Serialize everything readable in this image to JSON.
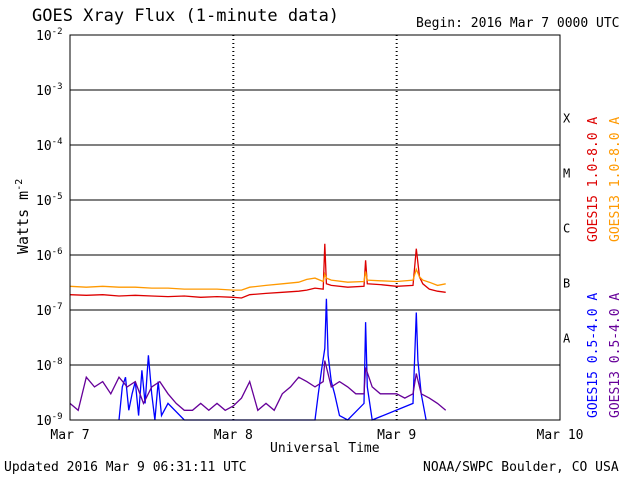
{
  "header": {
    "title": "GOES Xray Flux (1-minute data)",
    "begin": "Begin:  2016 Mar 7 0000 UTC"
  },
  "footer": {
    "updated": "Updated 2016 Mar  9 06:31:11 UTC",
    "credit": "NOAA/SWPC Boulder, CO USA"
  },
  "chart_data": {
    "type": "line",
    "xlabel": "Universal Time",
    "ylabel": "Watts m",
    "ylabel_exponent": "-2",
    "x_ticks": [
      "Mar 7",
      "Mar 8",
      "Mar 9",
      "Mar 10"
    ],
    "xlim_days": [
      0,
      3
    ],
    "y_scale": "log",
    "ylim": [
      1e-09,
      0.01
    ],
    "y_ticks": [
      {
        "base": "10",
        "exp": "-9"
      },
      {
        "base": "10",
        "exp": "-8"
      },
      {
        "base": "10",
        "exp": "-7"
      },
      {
        "base": "10",
        "exp": "-6"
      },
      {
        "base": "10",
        "exp": "-5"
      },
      {
        "base": "10",
        "exp": "-4"
      },
      {
        "base": "10",
        "exp": "-3"
      },
      {
        "base": "10",
        "exp": "-2"
      }
    ],
    "flare_classes": [
      "A",
      "B",
      "C",
      "M",
      "X"
    ],
    "series": [
      {
        "name": "GOES15 1.0-8.0 A",
        "color": "#dd0000",
        "x": [
          0,
          0.1,
          0.2,
          0.3,
          0.4,
          0.5,
          0.6,
          0.7,
          0.8,
          0.9,
          1.0,
          1.05,
          1.1,
          1.2,
          1.3,
          1.4,
          1.45,
          1.5,
          1.55,
          1.56,
          1.57,
          1.6,
          1.7,
          1.8,
          1.81,
          1.82,
          1.9,
          2.0,
          2.1,
          2.12,
          2.14,
          2.16,
          2.2,
          2.25,
          2.3
        ],
        "values": [
          1.9e-07,
          1.85e-07,
          1.9e-07,
          1.8e-07,
          1.85e-07,
          1.8e-07,
          1.75e-07,
          1.8e-07,
          1.7e-07,
          1.75e-07,
          1.7e-07,
          1.65e-07,
          1.9e-07,
          2e-07,
          2.1e-07,
          2.2e-07,
          2.3e-07,
          2.5e-07,
          2.4e-07,
          1.6e-06,
          3e-07,
          2.8e-07,
          2.6e-07,
          2.7e-07,
          8e-07,
          3e-07,
          2.9e-07,
          2.7e-07,
          2.8e-07,
          1.3e-06,
          4e-07,
          3e-07,
          2.4e-07,
          2.2e-07,
          2.1e-07
        ]
      },
      {
        "name": "GOES13 1.0-8.0 A",
        "color": "#ff9900",
        "x": [
          0,
          0.1,
          0.2,
          0.3,
          0.4,
          0.5,
          0.6,
          0.7,
          0.8,
          0.9,
          1.0,
          1.05,
          1.1,
          1.2,
          1.3,
          1.4,
          1.45,
          1.5,
          1.55,
          1.56,
          1.57,
          1.6,
          1.7,
          1.8,
          1.81,
          1.82,
          1.9,
          2.0,
          2.1,
          2.12,
          2.14,
          2.16,
          2.2,
          2.25,
          2.3
        ],
        "values": [
          2.7e-07,
          2.6e-07,
          2.7e-07,
          2.6e-07,
          2.6e-07,
          2.5e-07,
          2.5e-07,
          2.4e-07,
          2.4e-07,
          2.4e-07,
          2.3e-07,
          2.3e-07,
          2.6e-07,
          2.8e-07,
          3e-07,
          3.2e-07,
          3.6e-07,
          3.8e-07,
          3.3e-07,
          4.5e-07,
          3.8e-07,
          3.5e-07,
          3.2e-07,
          3.3e-07,
          5e-07,
          3.5e-07,
          3.4e-07,
          3.3e-07,
          3.5e-07,
          5.5e-07,
          4e-07,
          3.5e-07,
          3.2e-07,
          2.8e-07,
          3e-07
        ]
      },
      {
        "name": "GOES15 0.5-4.0 A",
        "color": "#0000ff",
        "x": [
          0.3,
          0.32,
          0.34,
          0.36,
          0.38,
          0.4,
          0.42,
          0.44,
          0.46,
          0.48,
          0.5,
          0.52,
          0.54,
          0.56,
          0.6,
          0.7,
          1.5,
          1.52,
          1.54,
          1.56,
          1.57,
          1.58,
          1.6,
          1.62,
          1.65,
          1.7,
          1.8,
          1.81,
          1.82,
          1.85,
          2.1,
          2.12,
          2.13,
          2.15,
          2.18
        ],
        "values": [
          1e-09,
          4e-09,
          6e-09,
          1.5e-09,
          3e-09,
          5e-09,
          1.2e-09,
          8e-09,
          2e-09,
          1.5e-08,
          3e-09,
          1e-09,
          5e-09,
          1.2e-09,
          2e-09,
          1e-09,
          1e-09,
          3e-09,
          8e-09,
          2e-08,
          1.6e-07,
          1.5e-08,
          5e-09,
          3e-09,
          1.2e-09,
          1e-09,
          2e-09,
          6e-08,
          4e-09,
          1e-09,
          2e-09,
          9e-08,
          1.2e-08,
          3e-09,
          1e-09
        ]
      },
      {
        "name": "GOES13 0.5-4.0 A",
        "color": "#660099",
        "x": [
          0,
          0.05,
          0.1,
          0.15,
          0.2,
          0.25,
          0.3,
          0.35,
          0.4,
          0.45,
          0.5,
          0.55,
          0.6,
          0.65,
          0.7,
          0.75,
          0.8,
          0.85,
          0.9,
          0.95,
          1.0,
          1.05,
          1.1,
          1.15,
          1.2,
          1.25,
          1.3,
          1.35,
          1.4,
          1.45,
          1.5,
          1.55,
          1.56,
          1.6,
          1.65,
          1.7,
          1.75,
          1.8,
          1.81,
          1.85,
          1.9,
          1.95,
          2.0,
          2.05,
          2.1,
          2.12,
          2.15,
          2.2,
          2.25,
          2.3
        ],
        "values": [
          2e-09,
          1.5e-09,
          6e-09,
          4e-09,
          5e-09,
          3e-09,
          6e-09,
          4e-09,
          5e-09,
          2e-09,
          4e-09,
          5e-09,
          3e-09,
          2e-09,
          1.5e-09,
          1.5e-09,
          2e-09,
          1.5e-09,
          2e-09,
          1.5e-09,
          1.8e-09,
          2.5e-09,
          5e-09,
          1.5e-09,
          2e-09,
          1.5e-09,
          3e-09,
          4e-09,
          6e-09,
          5e-09,
          4e-09,
          5e-09,
          1.2e-08,
          4e-09,
          5e-09,
          4e-09,
          3e-09,
          3e-09,
          9e-09,
          4e-09,
          3e-09,
          3e-09,
          3e-09,
          2.5e-09,
          3e-09,
          7e-09,
          3e-09,
          2.5e-09,
          2e-09,
          1.5e-09
        ]
      }
    ]
  }
}
